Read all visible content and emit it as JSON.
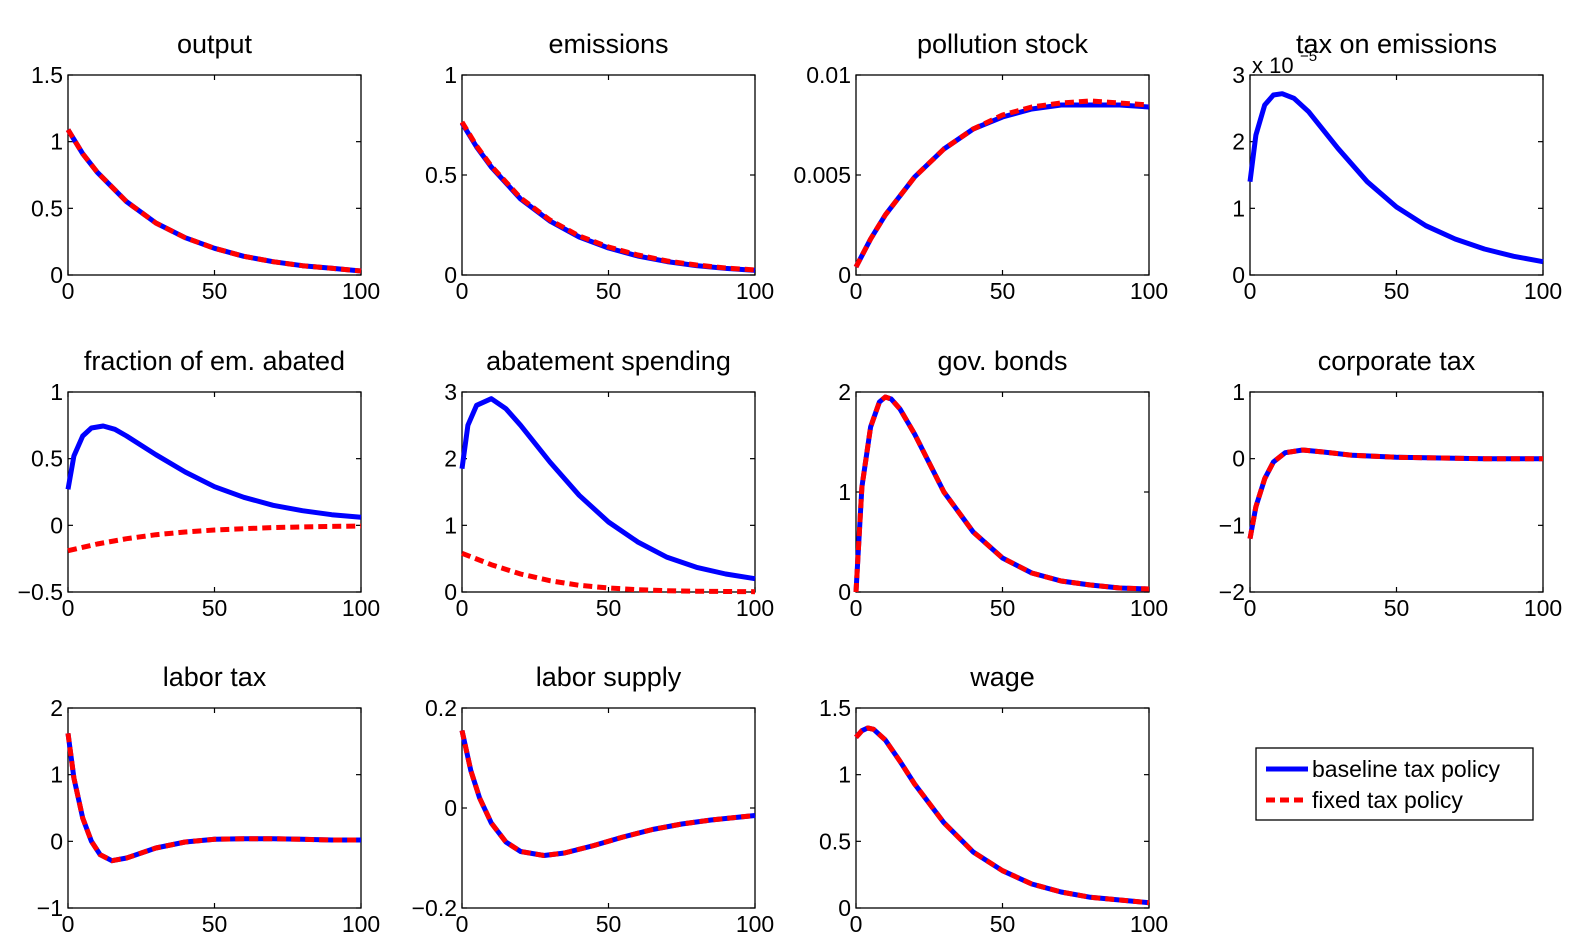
{
  "colors": {
    "baseline": "#0000ff",
    "fixed": "#ff0000"
  },
  "legend": {
    "placement": "bottom-right",
    "entries": [
      "baseline tax policy",
      "fixed tax policy"
    ]
  },
  "chart_data": [
    {
      "type": "line",
      "title": "output",
      "xlim": [
        0,
        100
      ],
      "ylim": [
        0,
        1.5
      ],
      "xticks": [
        0,
        50,
        100
      ],
      "yticks": [
        0,
        0.5,
        1,
        1.5
      ],
      "ytick_labels": [
        "0",
        "0.5",
        "1",
        "1.5"
      ],
      "series": [
        {
          "name": "baseline tax policy",
          "x": [
            0,
            5,
            10,
            20,
            30,
            40,
            50,
            60,
            70,
            80,
            90,
            100
          ],
          "y": [
            1.09,
            0.91,
            0.77,
            0.55,
            0.39,
            0.28,
            0.2,
            0.14,
            0.1,
            0.07,
            0.05,
            0.03
          ]
        },
        {
          "name": "fixed tax policy",
          "x": [
            0,
            5,
            10,
            20,
            30,
            40,
            50,
            60,
            70,
            80,
            90,
            100
          ],
          "y": [
            1.09,
            0.91,
            0.77,
            0.55,
            0.39,
            0.28,
            0.2,
            0.14,
            0.1,
            0.07,
            0.05,
            0.03
          ]
        }
      ]
    },
    {
      "type": "line",
      "title": "emissions",
      "xlim": [
        0,
        100
      ],
      "ylim": [
        0,
        1
      ],
      "xticks": [
        0,
        50,
        100
      ],
      "yticks": [
        0,
        0.5,
        1
      ],
      "ytick_labels": [
        "0",
        "0.5",
        "1"
      ],
      "series": [
        {
          "name": "baseline tax policy",
          "x": [
            0,
            5,
            10,
            20,
            30,
            40,
            50,
            60,
            70,
            80,
            90,
            100
          ],
          "y": [
            0.76,
            0.64,
            0.54,
            0.38,
            0.27,
            0.19,
            0.135,
            0.095,
            0.067,
            0.047,
            0.033,
            0.023
          ]
        },
        {
          "name": "fixed tax policy",
          "x": [
            0,
            5,
            10,
            20,
            30,
            40,
            50,
            60,
            70,
            80,
            90,
            100
          ],
          "y": [
            0.765,
            0.645,
            0.545,
            0.385,
            0.275,
            0.195,
            0.14,
            0.1,
            0.07,
            0.05,
            0.035,
            0.025
          ]
        }
      ]
    },
    {
      "type": "line",
      "title": "pollution stock",
      "xlim": [
        0,
        100
      ],
      "ylim": [
        0,
        0.01
      ],
      "xticks": [
        0,
        50,
        100
      ],
      "yticks": [
        0,
        0.005,
        0.01
      ],
      "ytick_labels": [
        "0",
        "0.005",
        "0.01"
      ],
      "series": [
        {
          "name": "baseline tax policy",
          "x": [
            0,
            5,
            10,
            20,
            30,
            40,
            50,
            60,
            70,
            80,
            90,
            100
          ],
          "y": [
            0.0004,
            0.0018,
            0.003,
            0.0049,
            0.0063,
            0.0073,
            0.0079,
            0.0083,
            0.0085,
            0.0085,
            0.0085,
            0.0084
          ]
        },
        {
          "name": "fixed tax policy",
          "x": [
            0,
            5,
            10,
            20,
            30,
            40,
            50,
            60,
            70,
            80,
            90,
            100
          ],
          "y": [
            0.0004,
            0.0018,
            0.003,
            0.0049,
            0.0063,
            0.0073,
            0.008,
            0.0084,
            0.0086,
            0.0087,
            0.0086,
            0.0085
          ]
        }
      ]
    },
    {
      "type": "line",
      "title": "tax on emissions",
      "xlim": [
        0,
        100
      ],
      "ylim": [
        0,
        3
      ],
      "multiplier": {
        "base": "x 10",
        "exponent": "−5"
      },
      "xticks": [
        0,
        50,
        100
      ],
      "yticks": [
        0,
        1,
        2,
        3
      ],
      "ytick_labels": [
        "0",
        "1",
        "2",
        "3"
      ],
      "series": [
        {
          "name": "baseline tax policy",
          "x": [
            0,
            2,
            5,
            8,
            11,
            15,
            20,
            30,
            40,
            50,
            60,
            70,
            80,
            90,
            100
          ],
          "y": [
            1.4,
            2.1,
            2.55,
            2.7,
            2.72,
            2.65,
            2.45,
            1.9,
            1.4,
            1.02,
            0.74,
            0.54,
            0.39,
            0.28,
            0.2
          ]
        }
      ]
    },
    {
      "type": "line",
      "title": "fraction of em. abated",
      "xlim": [
        0,
        100
      ],
      "ylim": [
        -0.5,
        1
      ],
      "xticks": [
        0,
        50,
        100
      ],
      "yticks": [
        -0.5,
        0,
        0.5,
        1
      ],
      "ytick_labels": [
        "−0.5",
        "0",
        "0.5",
        "1"
      ],
      "series": [
        {
          "name": "baseline tax policy",
          "x": [
            0,
            2,
            5,
            8,
            12,
            16,
            20,
            30,
            40,
            50,
            60,
            70,
            80,
            90,
            100
          ],
          "y": [
            0.27,
            0.52,
            0.67,
            0.73,
            0.745,
            0.72,
            0.67,
            0.53,
            0.4,
            0.29,
            0.21,
            0.15,
            0.11,
            0.08,
            0.06
          ]
        },
        {
          "name": "fixed tax policy",
          "x": [
            0,
            10,
            20,
            30,
            40,
            50,
            60,
            70,
            80,
            90,
            100
          ],
          "y": [
            -0.19,
            -0.14,
            -0.1,
            -0.07,
            -0.05,
            -0.035,
            -0.025,
            -0.017,
            -0.012,
            -0.008,
            -0.005
          ]
        }
      ]
    },
    {
      "type": "line",
      "title": "abatement spending",
      "xlim": [
        0,
        100
      ],
      "ylim": [
        0,
        3
      ],
      "xticks": [
        0,
        50,
        100
      ],
      "yticks": [
        0,
        1,
        2,
        3
      ],
      "ytick_labels": [
        "0",
        "1",
        "2",
        "3"
      ],
      "series": [
        {
          "name": "baseline tax policy",
          "x": [
            0,
            2,
            5,
            10,
            15,
            20,
            30,
            40,
            50,
            60,
            70,
            80,
            90,
            100
          ],
          "y": [
            1.85,
            2.5,
            2.8,
            2.9,
            2.75,
            2.5,
            1.95,
            1.45,
            1.05,
            0.75,
            0.52,
            0.37,
            0.27,
            0.2
          ]
        },
        {
          "name": "fixed tax policy",
          "x": [
            0,
            10,
            20,
            30,
            40,
            50,
            60,
            70,
            80,
            90,
            100
          ],
          "y": [
            0.58,
            0.41,
            0.27,
            0.17,
            0.1,
            0.06,
            0.035,
            0.02,
            0.012,
            0.007,
            0.004
          ]
        }
      ]
    },
    {
      "type": "line",
      "title": "gov. bonds",
      "xlim": [
        0,
        100
      ],
      "ylim": [
        0,
        2
      ],
      "xticks": [
        0,
        50,
        100
      ],
      "yticks": [
        0,
        1,
        2
      ],
      "ytick_labels": [
        "0",
        "1",
        "2"
      ],
      "series": [
        {
          "name": "baseline tax policy",
          "x": [
            0,
            2,
            5,
            8,
            10,
            12,
            15,
            20,
            30,
            40,
            50,
            60,
            70,
            80,
            90,
            100
          ],
          "y": [
            0,
            1.05,
            1.65,
            1.9,
            1.95,
            1.93,
            1.83,
            1.58,
            1.0,
            0.6,
            0.34,
            0.19,
            0.11,
            0.07,
            0.04,
            0.03
          ]
        },
        {
          "name": "fixed tax policy",
          "x": [
            0,
            2,
            5,
            8,
            10,
            12,
            15,
            20,
            30,
            40,
            50,
            60,
            70,
            80,
            90,
            100
          ],
          "y": [
            0,
            1.05,
            1.65,
            1.9,
            1.95,
            1.93,
            1.83,
            1.58,
            1.0,
            0.6,
            0.34,
            0.19,
            0.11,
            0.07,
            0.04,
            0.03
          ]
        }
      ]
    },
    {
      "type": "line",
      "title": "corporate tax",
      "xlim": [
        0,
        100
      ],
      "ylim": [
        -2,
        1
      ],
      "xticks": [
        0,
        50,
        100
      ],
      "yticks": [
        -2,
        -1,
        0,
        1
      ],
      "ytick_labels": [
        "−2",
        "−1",
        "0",
        "1"
      ],
      "series": [
        {
          "name": "baseline tax policy",
          "x": [
            0,
            2,
            5,
            8,
            12,
            18,
            25,
            35,
            50,
            65,
            80,
            100
          ],
          "y": [
            -1.2,
            -0.72,
            -0.3,
            -0.05,
            0.09,
            0.13,
            0.1,
            0.05,
            0.02,
            0.01,
            0.0,
            0.0
          ]
        },
        {
          "name": "fixed tax policy",
          "x": [
            0,
            2,
            5,
            8,
            12,
            18,
            25,
            35,
            50,
            65,
            80,
            100
          ],
          "y": [
            -1.2,
            -0.72,
            -0.3,
            -0.05,
            0.09,
            0.13,
            0.1,
            0.05,
            0.02,
            0.01,
            0.0,
            0.0
          ]
        }
      ]
    },
    {
      "type": "line",
      "title": "labor tax",
      "xlim": [
        0,
        100
      ],
      "ylim": [
        -1,
        2
      ],
      "xticks": [
        0,
        50,
        100
      ],
      "yticks": [
        -1,
        0,
        1,
        2
      ],
      "ytick_labels": [
        "−1",
        "0",
        "1",
        "2"
      ],
      "series": [
        {
          "name": "baseline tax policy",
          "x": [
            0,
            2,
            5,
            8,
            11,
            15,
            20,
            30,
            40,
            50,
            60,
            70,
            80,
            90,
            100
          ],
          "y": [
            1.62,
            0.95,
            0.35,
            0.0,
            -0.2,
            -0.29,
            -0.25,
            -0.1,
            -0.01,
            0.03,
            0.04,
            0.04,
            0.03,
            0.02,
            0.02
          ]
        },
        {
          "name": "fixed tax policy",
          "x": [
            0,
            2,
            5,
            8,
            11,
            15,
            20,
            30,
            40,
            50,
            60,
            70,
            80,
            90,
            100
          ],
          "y": [
            1.62,
            0.95,
            0.35,
            0.0,
            -0.2,
            -0.29,
            -0.25,
            -0.1,
            -0.01,
            0.03,
            0.04,
            0.04,
            0.03,
            0.02,
            0.02
          ]
        }
      ]
    },
    {
      "type": "line",
      "title": "labor supply",
      "xlim": [
        0,
        100
      ],
      "ylim": [
        -0.2,
        0.2
      ],
      "xticks": [
        0,
        50,
        100
      ],
      "yticks": [
        -0.2,
        0,
        0.2
      ],
      "ytick_labels": [
        "−0.2",
        "0",
        "0.2"
      ],
      "series": [
        {
          "name": "baseline tax policy",
          "x": [
            0,
            3,
            6,
            10,
            15,
            20,
            28,
            35,
            45,
            55,
            65,
            75,
            85,
            100
          ],
          "y": [
            0.155,
            0.075,
            0.02,
            -0.03,
            -0.068,
            -0.087,
            -0.095,
            -0.09,
            -0.075,
            -0.058,
            -0.043,
            -0.032,
            -0.024,
            -0.015
          ]
        },
        {
          "name": "fixed tax policy",
          "x": [
            0,
            3,
            6,
            10,
            15,
            20,
            28,
            35,
            45,
            55,
            65,
            75,
            85,
            100
          ],
          "y": [
            0.155,
            0.075,
            0.02,
            -0.03,
            -0.068,
            -0.087,
            -0.095,
            -0.09,
            -0.075,
            -0.058,
            -0.043,
            -0.032,
            -0.024,
            -0.015
          ]
        }
      ]
    },
    {
      "type": "line",
      "title": "wage",
      "xlim": [
        0,
        100
      ],
      "ylim": [
        0,
        1.5
      ],
      "xticks": [
        0,
        50,
        100
      ],
      "yticks": [
        0,
        0.5,
        1,
        1.5
      ],
      "ytick_labels": [
        "0",
        "0.5",
        "1",
        "1.5"
      ],
      "series": [
        {
          "name": "baseline tax policy",
          "x": [
            0,
            2,
            4,
            6,
            10,
            15,
            20,
            30,
            40,
            50,
            60,
            70,
            80,
            90,
            100
          ],
          "y": [
            1.28,
            1.33,
            1.35,
            1.34,
            1.26,
            1.1,
            0.93,
            0.64,
            0.42,
            0.28,
            0.18,
            0.12,
            0.08,
            0.06,
            0.04
          ]
        },
        {
          "name": "fixed tax policy",
          "x": [
            0,
            2,
            4,
            6,
            10,
            15,
            20,
            30,
            40,
            50,
            60,
            70,
            80,
            90,
            100
          ],
          "y": [
            1.28,
            1.33,
            1.35,
            1.34,
            1.26,
            1.1,
            0.93,
            0.64,
            0.42,
            0.28,
            0.18,
            0.12,
            0.08,
            0.06,
            0.04
          ]
        }
      ]
    }
  ]
}
